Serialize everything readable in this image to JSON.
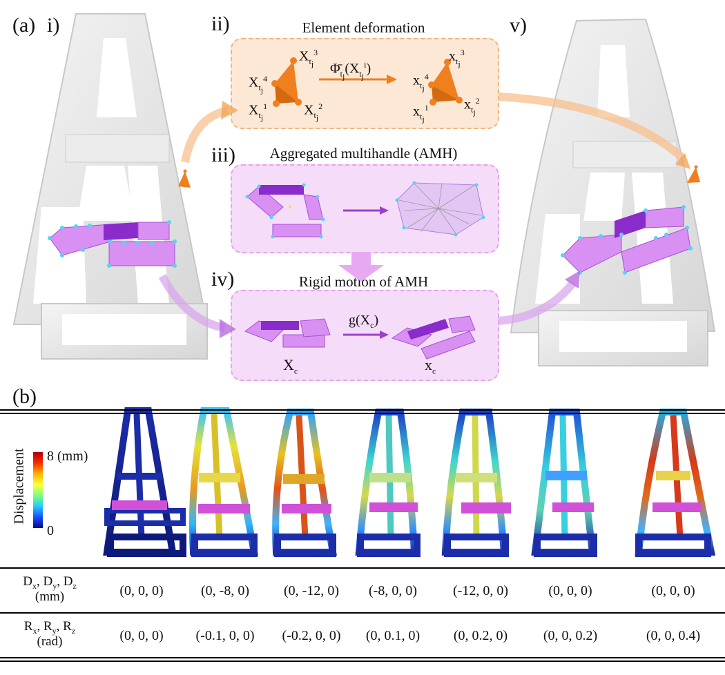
{
  "panel_a": {
    "label": "(a)",
    "step1": "i)",
    "step2": "ii)",
    "step3": "iii)",
    "step4": "iv)",
    "step5": "v)",
    "box2_title": "Element deformation",
    "box3_title": "Aggregated multihandle (AMH)",
    "box4_title": "Rigid motion of AMH",
    "map_label_base": "Φ̄",
    "map_label_arg": "(X",
    "rigid_map": "g(X",
    "rigid_sub": "c",
    "X_c": "X",
    "x_c": "x",
    "c_sub": "c",
    "t_sub": "t",
    "j_sub": "j",
    "v1": "1",
    "v2": "2",
    "v3": "3",
    "v4": "4",
    "i_sup": "i"
  },
  "panel_b": {
    "label": "(b)",
    "colorbar_title": "Displacement",
    "colorbar_max": "8 (mm)",
    "colorbar_min": "0",
    "row1_head_line1": "D",
    "row1_head_subs": [
      "x",
      "y",
      "z"
    ],
    "row1_head_line2": "(mm)",
    "row2_head_line1": "R",
    "row2_head_subs": [
      "x",
      "y",
      "z"
    ],
    "row2_head_line2": "(rad)",
    "translations": [
      "(0, 0, 0)",
      "(0, -8, 0)",
      "(0, -12, 0)",
      "(-8, 0, 0)",
      "(-12, 0, 0)",
      "(0, 0, 0)",
      "(0, 0, 0)"
    ],
    "rotations": [
      "(0, 0, 0)",
      "(-0.1, 0, 0)",
      "(-0.2, 0, 0)",
      "(0, 0.1, 0)",
      "(0, 0.2, 0)",
      "(0, 0, 0.2)",
      "(0, 0, 0.4)"
    ]
  },
  "colors": {
    "mesh": "#e6e6e6",
    "handle": "#d07cf0",
    "handle_dark": "#8a2bcc",
    "node": "#53d4f5",
    "tet": "#f07f1e",
    "orange_box": "#fde8d6",
    "pink_box": "#f5dcf8",
    "tower_blue": "#1b2da8"
  }
}
